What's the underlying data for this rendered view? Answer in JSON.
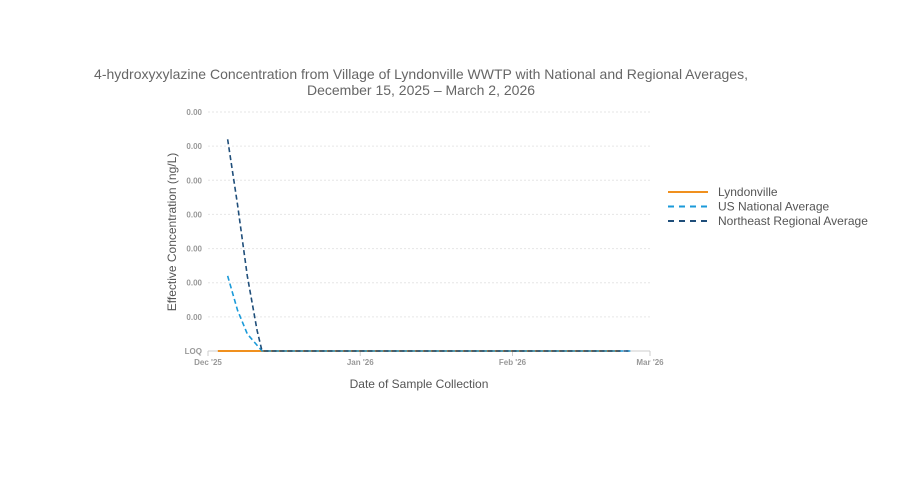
{
  "chart_data": {
    "type": "line",
    "title_lines": [
      "4-hydroxyxylazine Concentration from Village of Lyndonville WWTP with National and Regional Averages,",
      "December 15, 2025 – March 2, 2026"
    ],
    "xlabel": "Date of Sample Collection",
    "ylabel": "Effective Concentration (ng/L)",
    "x_axis": {
      "type": "date",
      "range": [
        "2025-12-01",
        "2026-03-01"
      ],
      "ticks": [
        {
          "date": "2025-12-01",
          "label": "Dec '25"
        },
        {
          "date": "2026-01-01",
          "label": "Jan '26"
        },
        {
          "date": "2026-02-01",
          "label": "Feb '26"
        },
        {
          "date": "2026-03-01",
          "label": "Mar '26"
        }
      ]
    },
    "y_axis": {
      "range": [
        0,
        7
      ],
      "tick_labels": [
        "LOQ",
        "0.00",
        "0.00",
        "0.00",
        "0.00",
        "0.00",
        "0.00",
        "0.00"
      ],
      "grid": true
    },
    "legend_position": "right",
    "series": [
      {
        "name": "Lyndonville",
        "color": "#f0901e",
        "dash": "solid",
        "points": [
          {
            "x": "2025-12-03",
            "y": 0
          },
          {
            "x": "2026-02-23",
            "y": 0
          }
        ]
      },
      {
        "name": "US National Average",
        "color": "#1a9ad9",
        "dash": "dashed",
        "points": [
          {
            "x": "2025-12-05",
            "y": 2.2
          },
          {
            "x": "2025-12-07",
            "y": 1.2
          },
          {
            "x": "2025-12-09",
            "y": 0.5
          },
          {
            "x": "2025-12-12",
            "y": 0
          },
          {
            "x": "2026-02-25",
            "y": 0
          }
        ]
      },
      {
        "name": "Northeast Regional Average",
        "color": "#1f4e7a",
        "dash": "dashed",
        "points": [
          {
            "x": "2025-12-05",
            "y": 6.2
          },
          {
            "x": "2025-12-07",
            "y": 4.3
          },
          {
            "x": "2025-12-09",
            "y": 2.2
          },
          {
            "x": "2025-12-11",
            "y": 0.6
          },
          {
            "x": "2025-12-12",
            "y": 0
          },
          {
            "x": "2026-02-25",
            "y": 0
          }
        ]
      }
    ]
  }
}
